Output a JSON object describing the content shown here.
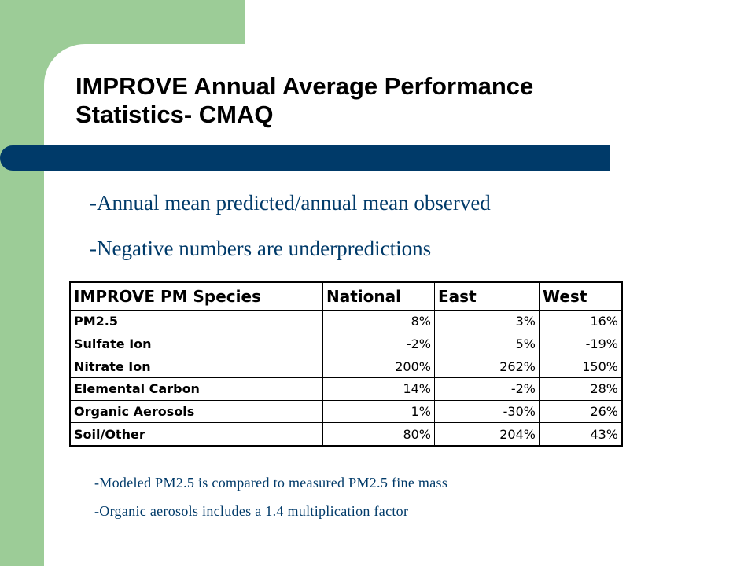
{
  "slide": {
    "title_line1": "IMPROVE Annual Average Performance",
    "title_line2": "Statistics- CMAQ",
    "bullets": [
      "-Annual mean predicted/annual mean observed",
      "-Negative numbers are underpredictions"
    ],
    "table": {
      "headers": [
        "IMPROVE PM Species",
        "National",
        "East",
        "West"
      ],
      "rows": [
        [
          "PM2.5",
          "8%",
          "3%",
          "16%"
        ],
        [
          "Sulfate Ion",
          "-2%",
          "5%",
          "-19%"
        ],
        [
          "Nitrate Ion",
          "200%",
          "262%",
          "150%"
        ],
        [
          "Elemental Carbon",
          "14%",
          "-2%",
          "28%"
        ],
        [
          "Organic Aerosols",
          "1%",
          "-30%",
          "26%"
        ],
        [
          "Soil/Other",
          "80%",
          "204%",
          "43%"
        ]
      ]
    },
    "notes": [
      "-Modeled PM2.5 is compared to measured PM2.5 fine mass",
      "-Organic aerosols includes a 1.4 multiplication factor"
    ]
  },
  "colors": {
    "green_band": "#9ccc97",
    "blue_bar": "#003a69",
    "bullet_text": "#003a69"
  }
}
